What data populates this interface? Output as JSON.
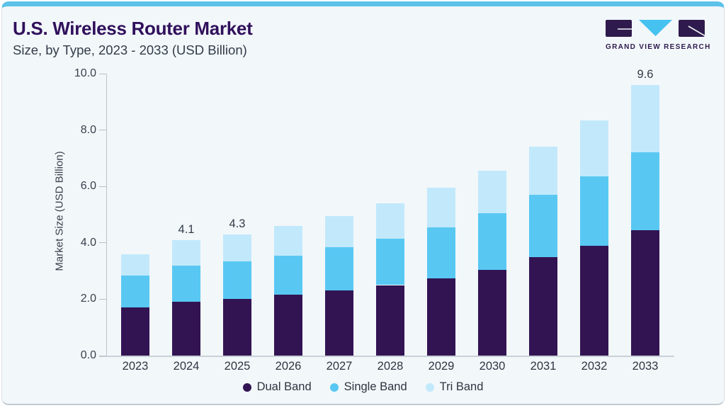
{
  "header": {
    "title": "U.S. Wireless Router Market",
    "subtitle": "Size, by Type, 2023 - 2033 (USD Billion)"
  },
  "logo": {
    "text": "GRAND VIEW RESEARCH",
    "purple": "#2F1A4D",
    "blue": "#45C2F0"
  },
  "chart_data": {
    "type": "bar",
    "stacked": true,
    "title": "U.S. Wireless Router Market Size, by Type, 2023 - 2033 (USD Billion)",
    "categories": [
      "2023",
      "2024",
      "2025",
      "2026",
      "2027",
      "2028",
      "2029",
      "2030",
      "2031",
      "2032",
      "2033"
    ],
    "series": [
      {
        "name": "Dual Band",
        "color": "#321453",
        "values": [
          1.7,
          1.9,
          2.0,
          2.15,
          2.3,
          2.5,
          2.75,
          3.05,
          3.5,
          3.9,
          4.45
        ]
      },
      {
        "name": "Single Band",
        "color": "#58C8F2",
        "values": [
          1.15,
          1.3,
          1.35,
          1.4,
          1.55,
          1.65,
          1.8,
          2.0,
          2.2,
          2.45,
          2.75
        ]
      },
      {
        "name": "Tri Band",
        "color": "#C2E9FB",
        "values": [
          0.75,
          0.9,
          0.95,
          1.05,
          1.1,
          1.25,
          1.4,
          1.5,
          1.7,
          2.0,
          2.4
        ]
      }
    ],
    "totals": [
      3.6,
      4.1,
      4.3,
      4.6,
      4.95,
      5.4,
      5.95,
      6.55,
      7.4,
      8.35,
      9.6
    ],
    "total_labels": [
      {
        "category": "2024",
        "text": "4.1"
      },
      {
        "category": "2025",
        "text": "4.3"
      },
      {
        "category": "2033",
        "text": "9.6"
      }
    ],
    "ylabel": "Market Size (USD Billion)",
    "ylim": [
      0,
      10
    ],
    "yticks": [
      "0.0",
      "2.0",
      "4.0",
      "6.0",
      "8.0",
      "10.0"
    ],
    "grid": false,
    "legend_position": "bottom",
    "accent_color": "#5CC2E8",
    "background_color": "#F2F7FA"
  }
}
